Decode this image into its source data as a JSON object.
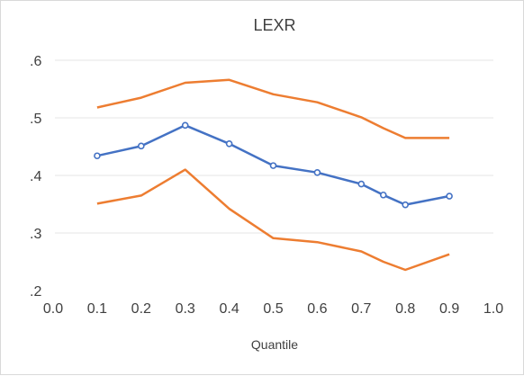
{
  "chart_data": {
    "type": "line",
    "title": "LEXR",
    "xlabel": "Quantile",
    "ylabel": "",
    "xlim": [
      0.0,
      1.0
    ],
    "ylim": [
      0.2,
      0.6
    ],
    "x_tick_labels": [
      "0.0",
      "0.1",
      "0.2",
      "0.3",
      "0.4",
      "0.5",
      "0.6",
      "0.7",
      "0.8",
      "0.9",
      "1.0"
    ],
    "x_ticks": [
      0.0,
      0.1,
      0.2,
      0.3,
      0.4,
      0.5,
      0.6,
      0.7,
      0.8,
      0.9,
      1.0
    ],
    "y_tick_labels": [
      ".2",
      ".3",
      ".4",
      ".5",
      ".6"
    ],
    "y_ticks": [
      0.2,
      0.3,
      0.4,
      0.5,
      0.6
    ],
    "grid": "horizontal",
    "legend": "none",
    "series": [
      {
        "color": "#ed7d31",
        "markers": false,
        "x": [
          0.1,
          0.2,
          0.3,
          0.4,
          0.5,
          0.6,
          0.7,
          0.75,
          0.8,
          0.9
        ],
        "values": [
          0.518,
          0.535,
          0.561,
          0.566,
          0.541,
          0.527,
          0.501,
          0.482,
          0.465,
          0.465
        ]
      },
      {
        "color": "#4472c4",
        "markers": true,
        "x": [
          0.1,
          0.2,
          0.3,
          0.4,
          0.5,
          0.6,
          0.7,
          0.75,
          0.8,
          0.9
        ],
        "values": [
          0.434,
          0.451,
          0.487,
          0.455,
          0.417,
          0.405,
          0.385,
          0.366,
          0.349,
          0.364
        ]
      },
      {
        "color": "#ed7d31",
        "markers": false,
        "x": [
          0.1,
          0.2,
          0.3,
          0.4,
          0.5,
          0.6,
          0.7,
          0.75,
          0.8,
          0.9
        ],
        "values": [
          0.351,
          0.365,
          0.41,
          0.342,
          0.291,
          0.284,
          0.268,
          0.25,
          0.236,
          0.263
        ]
      }
    ]
  }
}
